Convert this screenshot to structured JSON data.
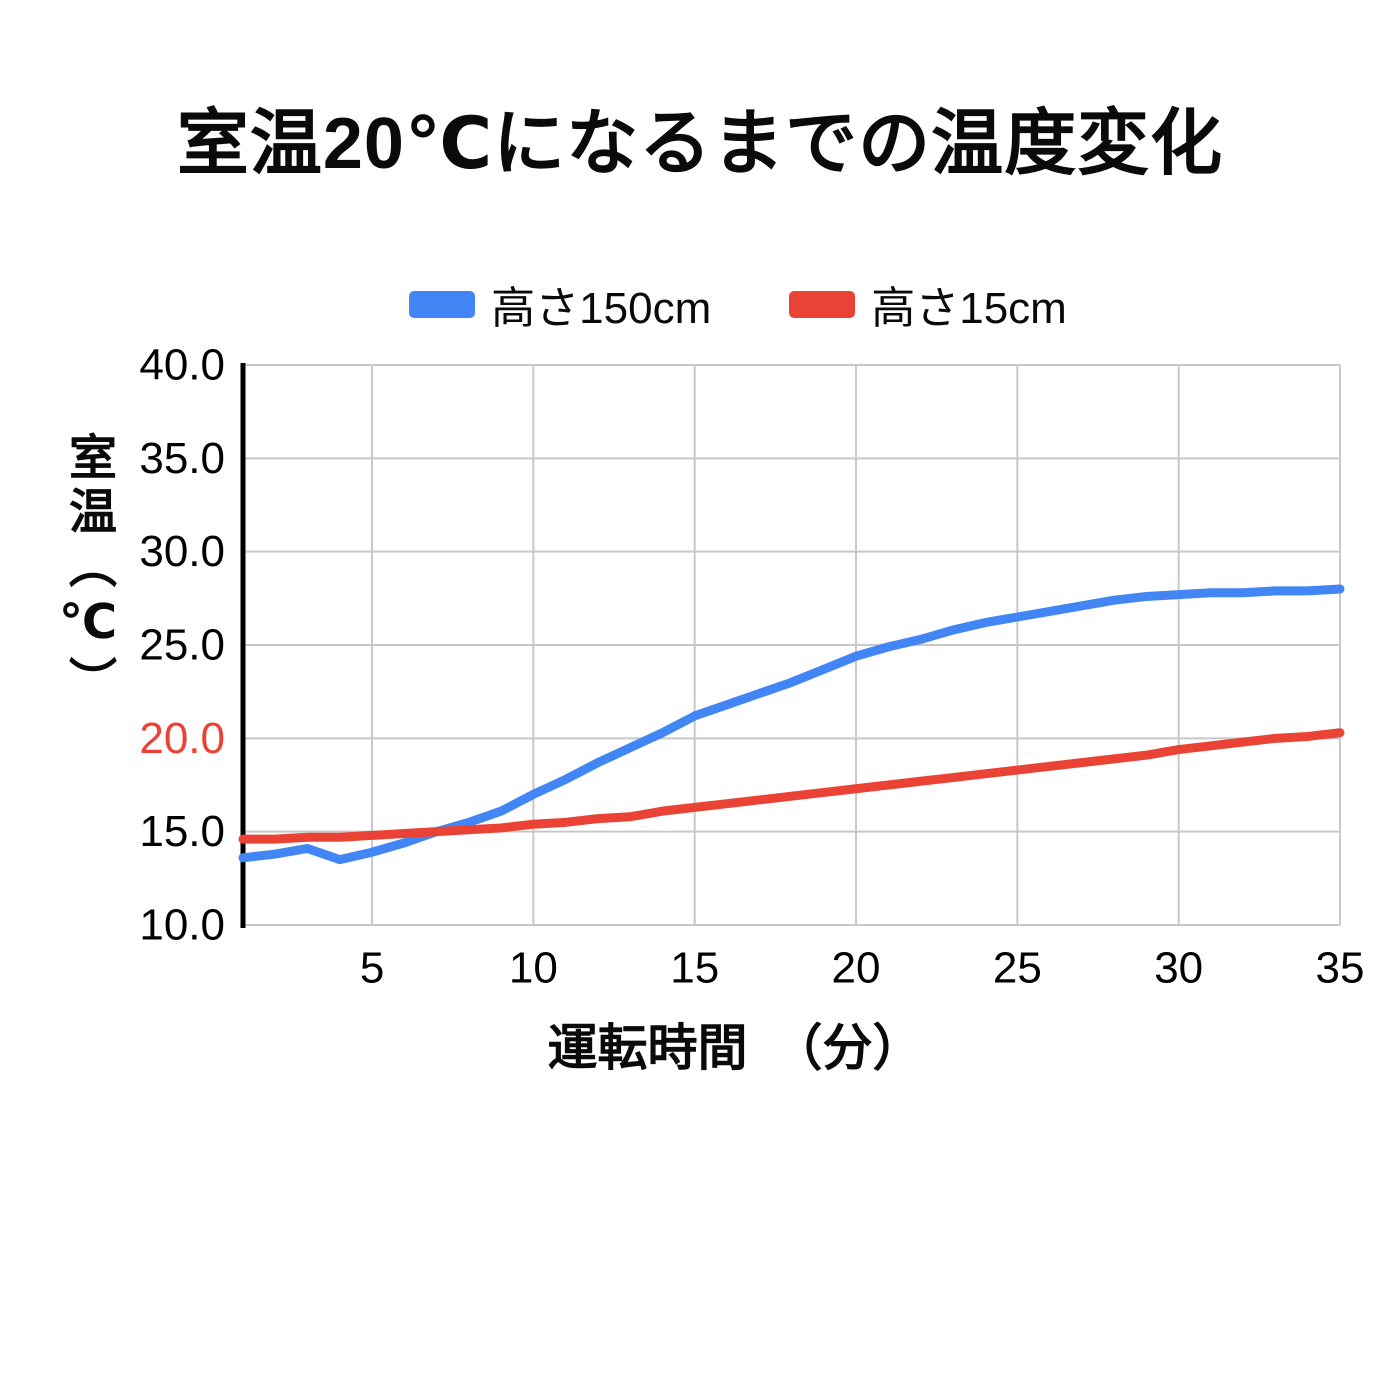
{
  "title": "室温20℃になるまでの温度変化",
  "legend": {
    "items": [
      {
        "label": "高さ150cm",
        "color": "#4285F4"
      },
      {
        "label": "高さ15cm",
        "color": "#EA4335"
      }
    ]
  },
  "y_axis_title": "室温（℃）",
  "x_axis_title": "運転時間　（分）",
  "colors": {
    "grid": "#c8c8c8",
    "axis": "#000000",
    "tick_text": "#000000",
    "highlight_tick": "#EA4335"
  },
  "chart_data": {
    "type": "line",
    "title": "室温20℃になるまでの温度変化",
    "xlabel": "運転時間（分）",
    "ylabel": "室温（℃）",
    "xlim": [
      1,
      35
    ],
    "ylim": [
      10,
      40
    ],
    "grid": true,
    "legend_position": "top",
    "xticks": [
      5,
      10,
      15,
      20,
      25,
      30,
      35
    ],
    "yticks": [
      {
        "value": 40,
        "label": "40.0",
        "color": "#000000"
      },
      {
        "value": 35,
        "label": "35.0",
        "color": "#000000"
      },
      {
        "value": 30,
        "label": "30.0",
        "color": "#000000"
      },
      {
        "value": 25,
        "label": "25.0",
        "color": "#000000"
      },
      {
        "value": 20,
        "label": "20.0",
        "color": "#EA4335"
      },
      {
        "value": 15,
        "label": "15.0",
        "color": "#000000"
      },
      {
        "value": 10,
        "label": "10.0",
        "color": "#000000"
      }
    ],
    "x": [
      1,
      2,
      3,
      4,
      5,
      6,
      7,
      8,
      9,
      10,
      11,
      12,
      13,
      14,
      15,
      16,
      17,
      18,
      19,
      20,
      21,
      22,
      23,
      24,
      25,
      26,
      27,
      28,
      29,
      30,
      31,
      32,
      33,
      34,
      35
    ],
    "series": [
      {
        "name": "高さ150cm",
        "color": "#4285F4",
        "values": [
          13.6,
          13.8,
          14.1,
          13.5,
          13.9,
          14.4,
          15.0,
          15.5,
          16.1,
          17.0,
          17.8,
          18.7,
          19.5,
          20.3,
          21.2,
          21.8,
          22.4,
          23.0,
          23.7,
          24.4,
          24.9,
          25.3,
          25.8,
          26.2,
          26.5,
          26.8,
          27.1,
          27.4,
          27.6,
          27.7,
          27.8,
          27.8,
          27.9,
          27.9,
          28.0
        ]
      },
      {
        "name": "高さ15cm",
        "color": "#EA4335",
        "values": [
          14.6,
          14.6,
          14.7,
          14.7,
          14.8,
          14.9,
          15.0,
          15.1,
          15.2,
          15.4,
          15.5,
          15.7,
          15.8,
          16.1,
          16.3,
          16.5,
          16.7,
          16.9,
          17.1,
          17.3,
          17.5,
          17.7,
          17.9,
          18.1,
          18.3,
          18.5,
          18.7,
          18.9,
          19.1,
          19.4,
          19.6,
          19.8,
          20.0,
          20.1,
          20.3
        ]
      }
    ]
  }
}
